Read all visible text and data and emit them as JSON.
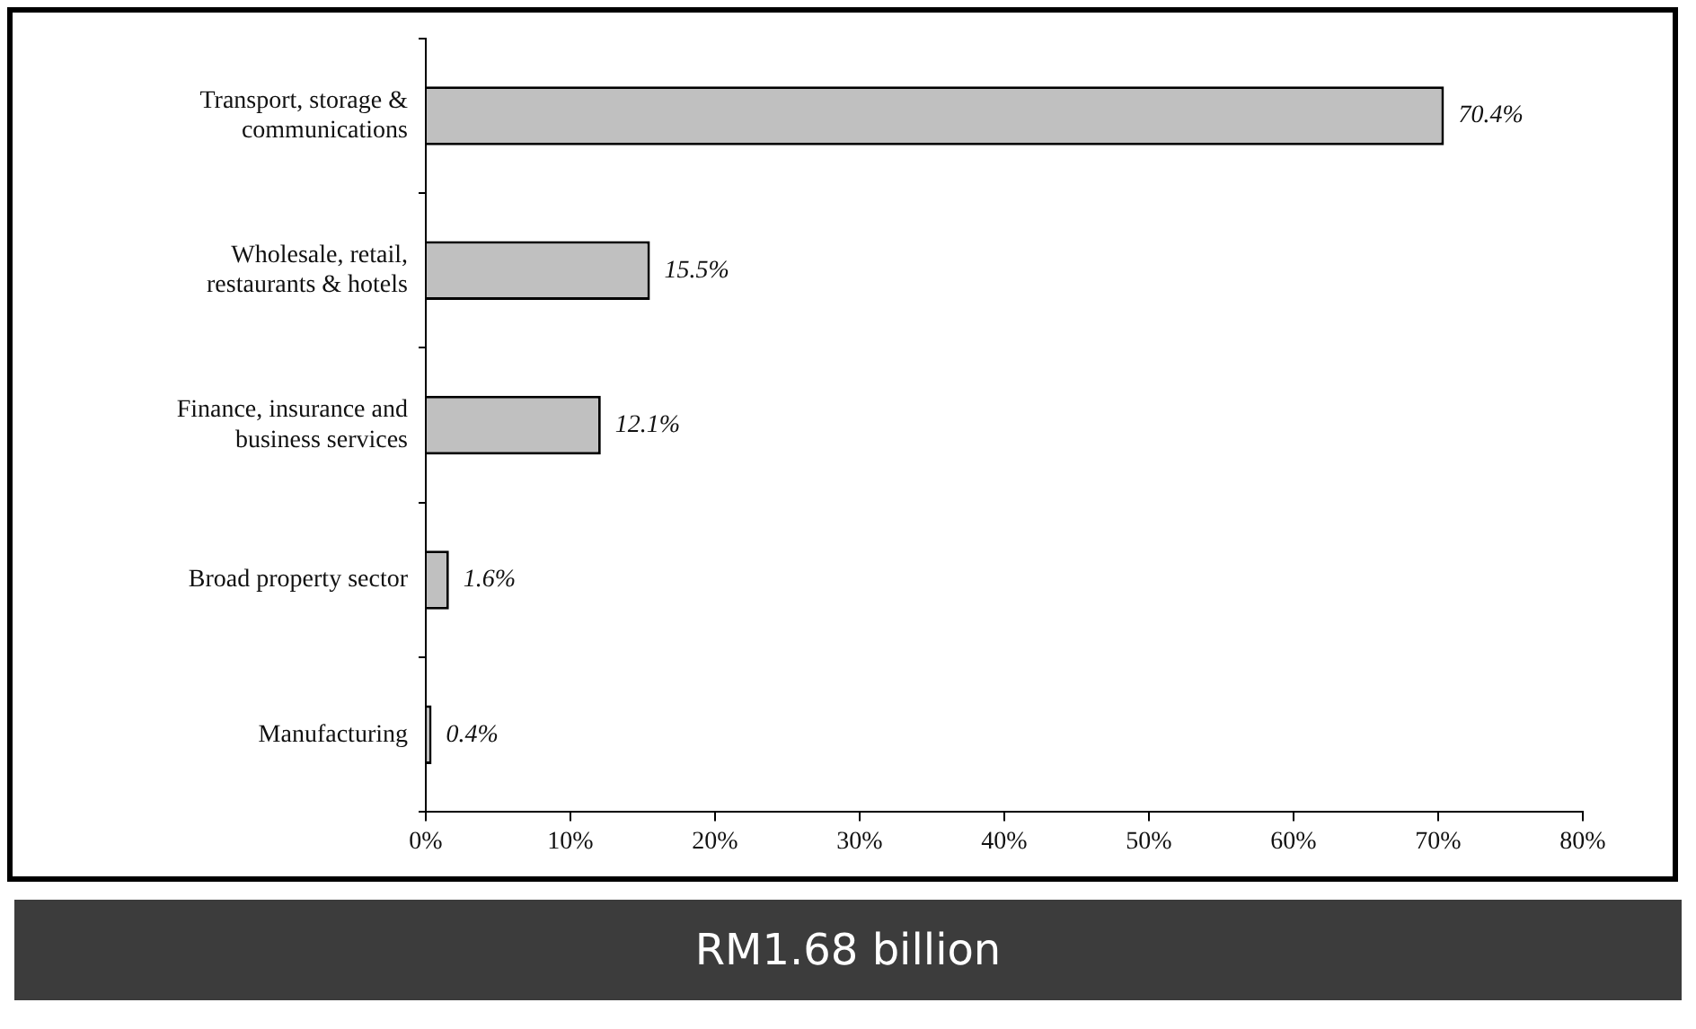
{
  "chart_data": {
    "type": "bar",
    "orientation": "horizontal",
    "categories": [
      "Transport, storage & communications",
      "Wholesale, retail, restaurants & hotels",
      "Finance, insurance and business services",
      "Broad property sector",
      "Manufacturing"
    ],
    "values": [
      70.4,
      15.5,
      12.1,
      1.6,
      0.4
    ],
    "value_labels": [
      "70.4%",
      "15.5%",
      "12.1%",
      "1.6%",
      "0.4%"
    ],
    "color": "#c0c0c0",
    "xlim": [
      0,
      80
    ],
    "xticks": [
      {
        "value": 0,
        "label": "0%"
      },
      {
        "value": 10,
        "label": "10%"
      },
      {
        "value": 20,
        "label": "20%"
      },
      {
        "value": 30,
        "label": "30%"
      },
      {
        "value": 40,
        "label": "40%"
      },
      {
        "value": 50,
        "label": "50%"
      },
      {
        "value": 60,
        "label": "60%"
      },
      {
        "value": 70,
        "label": "70%"
      },
      {
        "value": 80,
        "label": "80%"
      }
    ],
    "grid": false,
    "legend": false,
    "annotations": [
      "RM1.68 billion"
    ]
  }
}
